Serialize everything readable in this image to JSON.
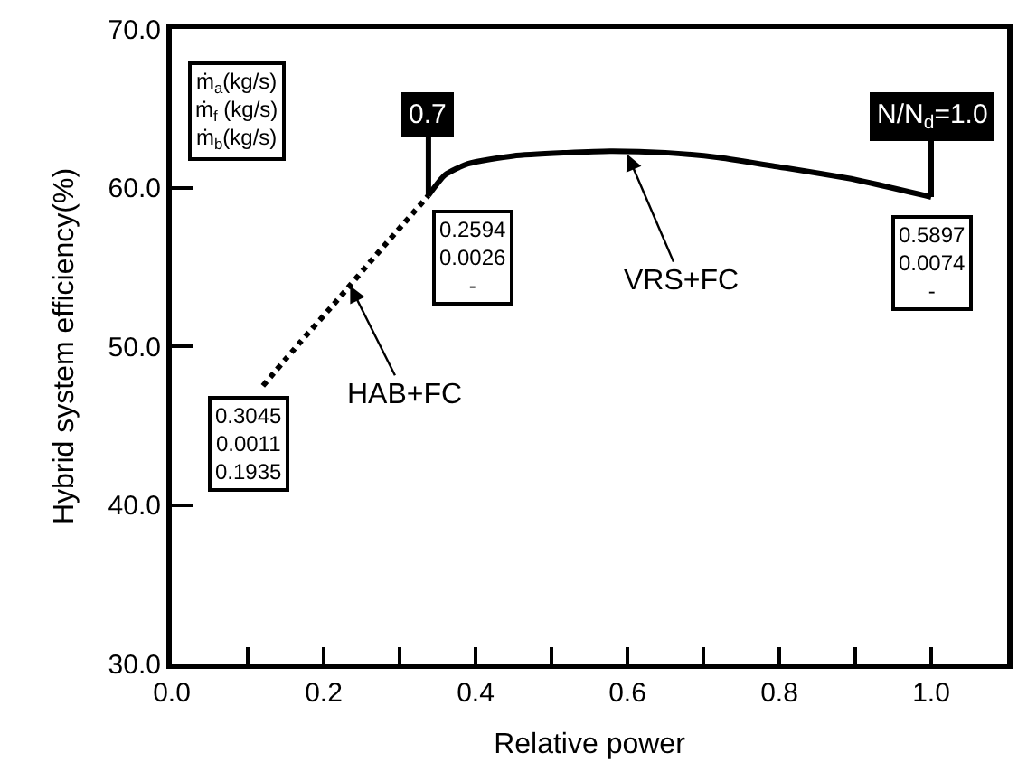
{
  "chart_data": {
    "type": "line",
    "xlabel": "Relative power",
    "ylabel": "Hybrid system efficiency(%)",
    "xlim": [
      0,
      1.1
    ],
    "ylim": [
      30,
      70
    ],
    "xticks": [
      {
        "value": 0,
        "label": "0.0"
      },
      {
        "value": 0.1,
        "label": null
      },
      {
        "value": 0.2,
        "label": "0.2"
      },
      {
        "value": 0.3,
        "label": null
      },
      {
        "value": 0.4,
        "label": "0.4"
      },
      {
        "value": 0.5,
        "label": null
      },
      {
        "value": 0.6,
        "label": "0.6"
      },
      {
        "value": 0.7,
        "label": null
      },
      {
        "value": 0.8,
        "label": "0.8"
      },
      {
        "value": 0.9,
        "label": null
      },
      {
        "value": 1.0,
        "label": "1.0"
      }
    ],
    "yticks": [
      {
        "value": 30,
        "label": "30.0"
      },
      {
        "value": 40,
        "label": "40.0"
      },
      {
        "value": 50,
        "label": "50.0"
      },
      {
        "value": 60,
        "label": "60.0"
      },
      {
        "value": 70,
        "label": "70.0"
      }
    ],
    "series": [
      {
        "color": "#000000",
        "line_style": "dotted",
        "x": [
          0.12,
          0.17,
          0.218,
          0.27,
          0.338
        ],
        "values": [
          47.5,
          50.3,
          52.9,
          55.8,
          59.5
        ]
      },
      {
        "color": "#000000",
        "line_style": "solid",
        "x": [
          0.338,
          0.36,
          0.39,
          0.45,
          0.52,
          0.577,
          0.65,
          0.72,
          0.8,
          0.9,
          1.0
        ],
        "values": [
          59.5,
          60.8,
          61.5,
          62.0,
          62.2,
          62.3,
          62.2,
          61.9,
          61.3,
          60.5,
          59.4
        ]
      }
    ],
    "annotations": [
      "ṁ$_{a}$(kg/s)\nṁ$_{f}$ (kg/s)\nṁ$_{b}$(kg/s)",
      {
        "text": "0.7",
        "x": 0.338,
        "y": 59.5
      },
      {
        "text": "N/N$_{d}$=1.0",
        "x": 1.0,
        "y": 59.4
      },
      {
        "text": "0.2594\n0.0026\n-",
        "x": 0.338,
        "y": 59.5
      },
      {
        "text": "0.5897\n0.0074\n-",
        "x": 1.0,
        "y": 59.4
      },
      {
        "text": "0.3045\n0.0011\n0.1935",
        "x": 0.12,
        "y": 47.5
      },
      {
        "text": "HAB+FC",
        "x": 0.235,
        "y": 53.8
      },
      {
        "text": "VRS+FC",
        "x": 0.6,
        "y": 62.1
      }
    ]
  }
}
